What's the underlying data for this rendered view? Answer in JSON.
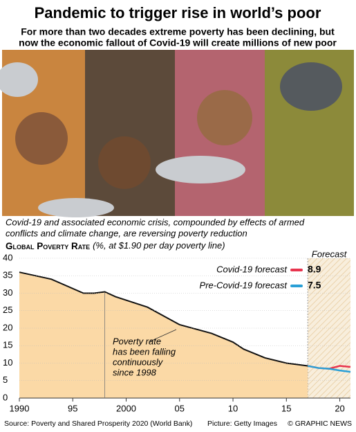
{
  "header": {
    "title": "Pandemic to trigger rise in world’s poor",
    "subtitle": [
      "For more than two decades extreme poverty has been declining, but",
      "now the economic fallout of Covid-19 will create millions of new poor"
    ]
  },
  "chart_data": {
    "type": "line",
    "caption": [
      "Covid-19 and associated economic crisis, compounded by effects of armed",
      "conflicts and climate change, are reversing poverty reduction"
    ],
    "title": "Global Poverty Rate",
    "title_note": "(%, at $1.90 per day poverty line)",
    "forecast_label": "Forecast",
    "forecast_start": 2017,
    "annotation": {
      "x": 1998,
      "lines": [
        "Poverty rate",
        "has been falling",
        "continuously",
        "since 1998"
      ]
    },
    "xlim": [
      1990,
      2021
    ],
    "ylim": [
      0,
      40
    ],
    "xticks": [
      1990,
      {
        "value": 1995,
        "label": "95"
      },
      2000,
      {
        "value": 2005,
        "label": "05"
      },
      {
        "value": 2010,
        "label": "10"
      },
      {
        "value": 2015,
        "label": "15"
      },
      {
        "value": 2020,
        "label": "20"
      }
    ],
    "yticks": [
      0,
      5,
      10,
      15,
      20,
      25,
      30,
      35,
      40
    ],
    "series": [
      {
        "color": "#111111",
        "area_color": "#fbd9a6",
        "x": [
          1990,
          1993,
          1996,
          1997,
          1998,
          1999,
          2002,
          2005,
          2008,
          2010,
          2011,
          2013,
          2015,
          2017
        ],
        "values": [
          36,
          34,
          30,
          30,
          30.4,
          29,
          26,
          21,
          18.5,
          16,
          14,
          11.5,
          10,
          9.2
        ]
      },
      {
        "name": "Covid-19 forecast",
        "color": "#e8344e",
        "x": [
          2017,
          2018,
          2019,
          2020,
          2021
        ],
        "values": [
          9.2,
          8.6,
          8.4,
          9.2,
          8.9
        ]
      },
      {
        "name": "Pre-Covid-19 forecast",
        "color": "#2a9fd6",
        "x": [
          2017,
          2018,
          2019,
          2020,
          2021
        ],
        "values": [
          9.2,
          8.6,
          8.4,
          7.9,
          7.5
        ]
      }
    ]
  },
  "footer": {
    "source": "Source: Poverty and Shared Prosperity 2020 (World Bank)",
    "picture": "Picture: Getty Images",
    "credit": "© GRAPHIC NEWS"
  }
}
